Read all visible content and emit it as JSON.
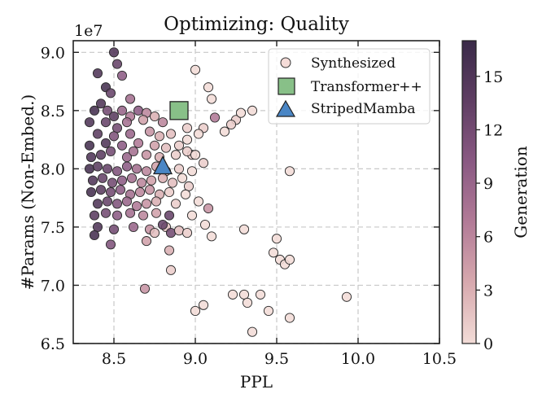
{
  "chart_data": {
    "type": "scatter",
    "title": "Optimizing: Quality",
    "xlabel": "PPL",
    "ylabel": "#Params (Non-Embed.)",
    "y_offset_label": "1e7",
    "xlim": [
      8.25,
      10.5
    ],
    "ylim": [
      6.5,
      9.1
    ],
    "xticks": [
      8.5,
      9.0,
      9.5,
      10.0,
      10.5
    ],
    "xtick_labels": [
      "8.5",
      "9.0",
      "9.5",
      "10.0",
      "10.5"
    ],
    "yticks": [
      6.5,
      7.0,
      7.5,
      8.0,
      8.5,
      9.0
    ],
    "ytick_labels": [
      "6.5",
      "7.0",
      "7.5",
      "8.0",
      "8.5",
      "9.0"
    ],
    "grid": true,
    "legend_position": "top-right",
    "colorbar": {
      "label": "Generation",
      "range": [
        0,
        17
      ],
      "ticks": [
        0,
        3,
        6,
        9,
        12,
        15
      ],
      "tick_labels": [
        "0",
        "3",
        "6",
        "9",
        "12",
        "15"
      ],
      "colors": [
        "#f2dcd7",
        "#d7a9ae",
        "#b27b97",
        "#8a5983",
        "#5f3e63",
        "#3a2a48"
      ]
    },
    "series": [
      {
        "name": "Synthesized",
        "marker": "circle",
        "color_by": "generation",
        "points": [
          [
            8.5,
            9.0,
            15
          ],
          [
            8.52,
            8.9,
            13
          ],
          [
            8.4,
            8.82,
            15
          ],
          [
            8.55,
            8.8,
            10
          ],
          [
            8.45,
            8.7,
            16
          ],
          [
            8.48,
            8.65,
            13
          ],
          [
            8.6,
            8.6,
            8
          ],
          [
            8.42,
            8.56,
            15
          ],
          [
            8.38,
            8.5,
            16
          ],
          [
            8.46,
            8.5,
            12
          ],
          [
            8.5,
            8.45,
            14
          ],
          [
            8.55,
            8.5,
            9
          ],
          [
            8.6,
            8.45,
            7
          ],
          [
            8.65,
            8.5,
            10
          ],
          [
            8.7,
            8.48,
            6
          ],
          [
            8.35,
            8.4,
            15
          ],
          [
            8.45,
            8.4,
            13
          ],
          [
            8.52,
            8.35,
            12
          ],
          [
            8.58,
            8.4,
            8
          ],
          [
            8.68,
            8.42,
            4
          ],
          [
            8.75,
            8.45,
            3
          ],
          [
            8.8,
            8.4,
            6
          ],
          [
            8.4,
            8.3,
            14
          ],
          [
            8.5,
            8.28,
            11
          ],
          [
            8.6,
            8.3,
            9
          ],
          [
            8.72,
            8.32,
            5
          ],
          [
            8.78,
            8.28,
            3
          ],
          [
            8.85,
            8.3,
            2
          ],
          [
            8.95,
            8.35,
            1
          ],
          [
            8.35,
            8.2,
            16
          ],
          [
            8.45,
            8.22,
            15
          ],
          [
            8.55,
            8.2,
            10
          ],
          [
            8.65,
            8.22,
            7
          ],
          [
            8.75,
            8.2,
            4
          ],
          [
            8.82,
            8.18,
            2
          ],
          [
            8.9,
            8.2,
            1
          ],
          [
            8.36,
            8.1,
            15
          ],
          [
            8.42,
            8.12,
            14
          ],
          [
            8.48,
            8.15,
            12
          ],
          [
            8.58,
            8.1,
            9
          ],
          [
            8.62,
            8.15,
            8
          ],
          [
            8.7,
            8.12,
            5
          ],
          [
            8.78,
            8.1,
            3
          ],
          [
            8.88,
            8.12,
            1
          ],
          [
            8.98,
            8.12,
            1
          ],
          [
            8.35,
            8.0,
            16
          ],
          [
            8.4,
            8.02,
            14
          ],
          [
            8.46,
            8.0,
            13
          ],
          [
            8.52,
            7.98,
            11
          ],
          [
            8.58,
            8.02,
            10
          ],
          [
            8.64,
            8.0,
            8
          ],
          [
            8.7,
            7.98,
            6
          ],
          [
            8.76,
            8.02,
            4
          ],
          [
            8.82,
            7.98,
            2
          ],
          [
            8.9,
            8.0,
            1
          ],
          [
            8.37,
            7.9,
            15
          ],
          [
            8.43,
            7.92,
            13
          ],
          [
            8.49,
            7.88,
            12
          ],
          [
            8.55,
            7.9,
            10
          ],
          [
            8.61,
            7.92,
            8
          ],
          [
            8.67,
            7.88,
            6
          ],
          [
            8.73,
            7.9,
            4
          ],
          [
            8.8,
            7.92,
            3
          ],
          [
            8.86,
            7.88,
            2
          ],
          [
            8.36,
            7.8,
            16
          ],
          [
            8.42,
            7.82,
            14
          ],
          [
            8.48,
            7.8,
            12
          ],
          [
            8.54,
            7.82,
            10
          ],
          [
            8.6,
            7.78,
            8
          ],
          [
            8.66,
            7.8,
            6
          ],
          [
            8.72,
            7.82,
            5
          ],
          [
            8.78,
            7.78,
            3
          ],
          [
            8.84,
            7.8,
            1
          ],
          [
            8.4,
            7.7,
            15
          ],
          [
            8.46,
            7.72,
            13
          ],
          [
            8.52,
            7.7,
            11
          ],
          [
            8.58,
            7.72,
            9
          ],
          [
            8.64,
            7.68,
            7
          ],
          [
            8.7,
            7.7,
            5
          ],
          [
            8.76,
            7.72,
            3
          ],
          [
            8.88,
            7.7,
            1
          ],
          [
            8.38,
            7.6,
            14
          ],
          [
            8.45,
            7.62,
            12
          ],
          [
            8.52,
            7.6,
            10
          ],
          [
            8.6,
            7.62,
            8
          ],
          [
            8.68,
            7.6,
            6
          ],
          [
            8.76,
            7.62,
            4
          ],
          [
            8.84,
            7.6,
            13
          ],
          [
            8.4,
            7.5,
            15
          ],
          [
            8.5,
            7.48,
            12
          ],
          [
            8.62,
            7.5,
            9
          ],
          [
            8.72,
            7.48,
            5
          ],
          [
            8.82,
            7.5,
            2
          ],
          [
            8.38,
            7.43,
            16
          ],
          [
            8.48,
            7.35,
            11
          ],
          [
            8.7,
            7.38,
            4
          ],
          [
            8.75,
            7.45,
            2
          ],
          [
            8.85,
            7.45,
            12
          ],
          [
            8.8,
            7.52,
            13
          ],
          [
            8.9,
            7.47,
            2
          ],
          [
            8.95,
            7.45,
            1
          ],
          [
            8.84,
            7.3,
            3
          ],
          [
            8.85,
            7.13,
            1
          ],
          [
            8.69,
            6.97,
            5
          ],
          [
            9.0,
            8.85,
            0
          ],
          [
            9.08,
            8.7,
            0
          ],
          [
            9.1,
            8.6,
            0
          ],
          [
            9.25,
            8.42,
            1
          ],
          [
            9.12,
            8.44,
            7
          ],
          [
            9.05,
            8.35,
            1
          ],
          [
            9.02,
            8.3,
            0
          ],
          [
            9.18,
            8.32,
            0
          ],
          [
            9.35,
            8.5,
            0
          ],
          [
            9.22,
            8.38,
            1
          ],
          [
            8.95,
            8.15,
            1
          ],
          [
            9.0,
            8.12,
            0
          ],
          [
            9.05,
            8.05,
            1
          ],
          [
            8.98,
            7.98,
            0
          ],
          [
            8.92,
            7.92,
            0
          ],
          [
            8.96,
            7.85,
            1
          ],
          [
            8.94,
            7.78,
            0
          ],
          [
            9.02,
            7.72,
            0
          ],
          [
            9.08,
            7.66,
            5
          ],
          [
            8.98,
            7.6,
            0
          ],
          [
            9.1,
            7.42,
            0
          ],
          [
            9.06,
            7.52,
            0
          ],
          [
            9.3,
            7.48,
            0
          ],
          [
            9.5,
            7.4,
            0
          ],
          [
            9.48,
            7.28,
            0
          ],
          [
            9.52,
            7.22,
            0
          ],
          [
            9.55,
            7.18,
            0
          ],
          [
            9.58,
            7.22,
            0
          ],
          [
            9.58,
            7.98,
            0
          ],
          [
            9.0,
            6.78,
            0
          ],
          [
            9.05,
            6.83,
            0
          ],
          [
            9.23,
            6.92,
            0
          ],
          [
            9.3,
            6.92,
            0
          ],
          [
            9.32,
            6.85,
            0
          ],
          [
            9.35,
            6.6,
            0
          ],
          [
            9.4,
            6.92,
            0
          ],
          [
            9.45,
            6.78,
            0
          ],
          [
            9.58,
            6.72,
            0
          ],
          [
            9.93,
            6.9,
            0
          ],
          [
            8.95,
            8.25,
            0
          ],
          [
            9.28,
            8.48,
            0
          ]
        ]
      },
      {
        "name": "Transformer++",
        "marker": "square",
        "color": "#88c088",
        "points": [
          [
            8.9,
            8.5
          ]
        ]
      },
      {
        "name": "StripedMamba",
        "marker": "triangle",
        "color": "#4a86c5",
        "points": [
          [
            8.8,
            8.02
          ]
        ]
      }
    ]
  }
}
